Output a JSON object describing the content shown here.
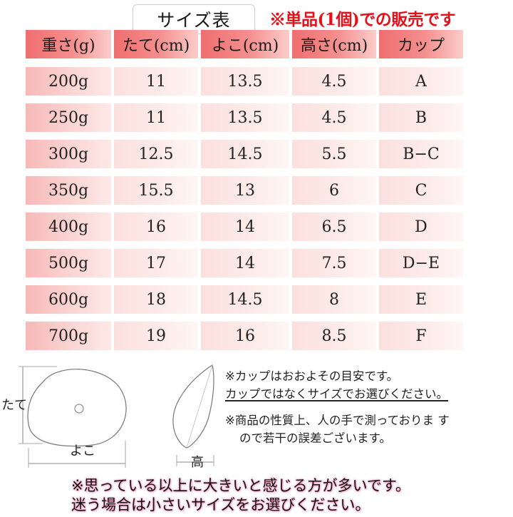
{
  "title": "サイズ表",
  "sale_note": "※単品(1個)での販売です",
  "table": {
    "headers": [
      "重さ(g)",
      "たて(cm)",
      "よこ(cm)",
      "高さ(cm)",
      "カップ"
    ],
    "rows": [
      [
        "200g",
        "11",
        "13.5",
        "4.5",
        "A"
      ],
      [
        "250g",
        "11",
        "13.5",
        "4.5",
        "B"
      ],
      [
        "300g",
        "12.5",
        "14.5",
        "5.5",
        "B−C"
      ],
      [
        "350g",
        "15.5",
        "13",
        "6",
        "C"
      ],
      [
        "400g",
        "16",
        "14",
        "6.5",
        "D"
      ],
      [
        "500g",
        "17",
        "14",
        "7.5",
        "D−E"
      ],
      [
        "600g",
        "18",
        "14.5",
        "8",
        "E"
      ],
      [
        "700g",
        "19",
        "16",
        "8.5",
        "F"
      ]
    ]
  },
  "diagram": {
    "height_label": "たて",
    "width_label": "よこ",
    "depth_label": "高"
  },
  "notes": {
    "line1": "※カップはおおよその目安です。",
    "line2": "カップではなくサイズでお選びください。",
    "line3": "※商品の性質上、人の手で測っておりま す",
    "line4": "ので若干の誤差ございます。"
  },
  "bottom_note": {
    "line1": "※思っている以上に大きいと感じる方が多いです。",
    "line2": "迷う場合は小さいサイズをお選びください。"
  }
}
